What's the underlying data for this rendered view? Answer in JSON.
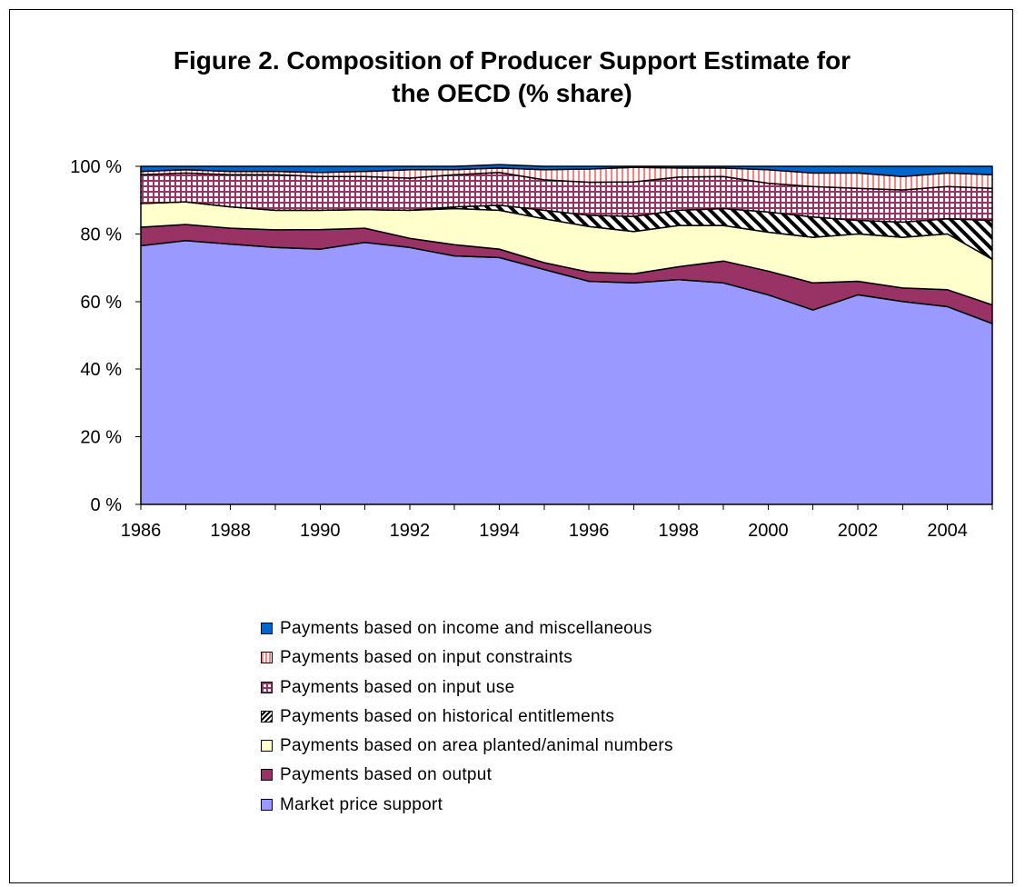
{
  "chart_data": {
    "type": "area",
    "stacked": true,
    "title_lines": [
      "Figure 2. Composition of Producer Support Estimate for",
      "the OECD (% share)"
    ],
    "xlabel": "",
    "ylabel": "",
    "x": [
      1986,
      1987,
      1988,
      1989,
      1990,
      1991,
      1992,
      1993,
      1994,
      1995,
      1996,
      1997,
      1998,
      1999,
      2000,
      2001,
      2002,
      2003,
      2004,
      2005
    ],
    "x_tick_labels": [
      "1986",
      "1988",
      "1990",
      "1992",
      "1994",
      "1996",
      "1998",
      "2000",
      "2002",
      "2004"
    ],
    "y_tick_labels": [
      "0 %",
      "20 %",
      "40 %",
      "60 %",
      "80 %",
      "100 %"
    ],
    "ylim": [
      0,
      100
    ],
    "grid": false,
    "legend_position": "bottom",
    "series": [
      {
        "name": "Market price support",
        "color": "#9999ff",
        "pattern": "solid",
        "values": [
          76.5,
          78.0,
          77.0,
          76.0,
          75.5,
          77.5,
          76.0,
          73.5,
          73.0,
          69.5,
          66.0,
          65.5,
          66.5,
          65.5,
          62.0,
          57.5,
          62.0,
          60.0,
          58.5,
          53.5
        ]
      },
      {
        "name": "Payments based on output",
        "color": "#993366",
        "pattern": "solid",
        "values": [
          5.5,
          4.8,
          4.7,
          5.2,
          5.8,
          4.2,
          2.7,
          3.3,
          2.5,
          2.0,
          2.7,
          2.7,
          3.8,
          6.5,
          7.0,
          8.0,
          4.0,
          4.0,
          5.0,
          5.5
        ]
      },
      {
        "name": "Payments based on area planted/animal numbers",
        "color": "#ffffcc",
        "pattern": "solid",
        "values": [
          7.0,
          6.7,
          6.3,
          5.8,
          5.7,
          5.5,
          8.3,
          10.7,
          11.5,
          13.0,
          13.5,
          12.5,
          12.2,
          10.5,
          11.5,
          13.5,
          14.0,
          15.0,
          16.5,
          13.5
        ]
      },
      {
        "name": "Payments based on historical entitlements",
        "color": "#000000",
        "pattern": "hatch",
        "values": [
          0,
          0,
          0,
          0,
          0,
          0,
          0,
          0.5,
          1.5,
          2.5,
          3.3,
          4.5,
          4.5,
          5.0,
          6.0,
          6.0,
          4.0,
          4.5,
          4.5,
          11.5
        ]
      },
      {
        "name": "Payments based on input use",
        "color": "#993366",
        "pattern": "grid",
        "values": [
          8.5,
          8.5,
          9.5,
          10.5,
          10.0,
          9.8,
          9.5,
          9.5,
          9.7,
          9.0,
          9.8,
          10.2,
          9.8,
          9.5,
          8.5,
          9.0,
          9.5,
          9.5,
          9.5,
          9.5
        ]
      },
      {
        "name": "Payments based on input constraints",
        "color": "#ff8080",
        "pattern": "vstripes",
        "values": [
          1.0,
          1.0,
          1.0,
          1.0,
          1.2,
          1.5,
          2.5,
          1.5,
          1.3,
          3.0,
          3.9,
          4.3,
          2.7,
          2.5,
          4.0,
          4.0,
          4.5,
          4.0,
          4.0,
          4.0
        ]
      },
      {
        "name": "Payments based on income and miscellaneous",
        "color": "#0066cc",
        "pattern": "solid",
        "values": [
          1.5,
          1.0,
          1.5,
          1.5,
          1.8,
          1.5,
          1.0,
          1.0,
          1.0,
          1.0,
          0.8,
          0.3,
          0.5,
          0.5,
          1.0,
          2.0,
          2.0,
          3.0,
          2.0,
          2.5
        ]
      }
    ]
  }
}
